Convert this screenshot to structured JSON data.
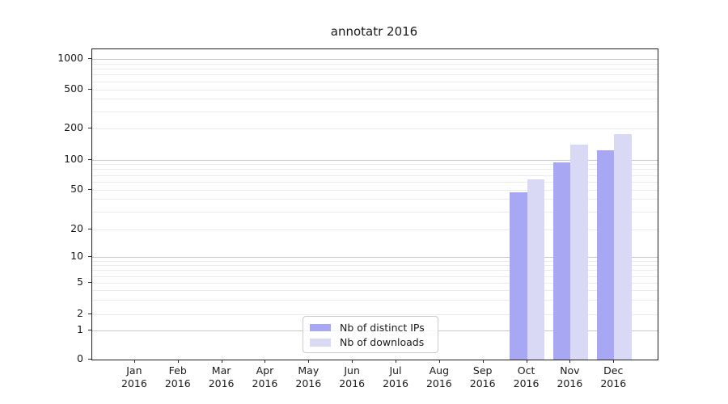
{
  "chart_data": {
    "type": "bar",
    "title": "annotatr 2016",
    "categories": [
      "Jan 2016",
      "Feb 2016",
      "Mar 2016",
      "Apr 2016",
      "May 2016",
      "Jun 2016",
      "Jul 2016",
      "Aug 2016",
      "Sep 2016",
      "Oct 2016",
      "Nov 2016",
      "Dec 2016"
    ],
    "series": [
      {
        "name": "Nb of distinct IPs",
        "color": "#a7a7f3",
        "values": [
          0,
          0,
          0,
          0,
          0,
          0,
          0,
          0,
          0,
          47,
          93,
          123
        ]
      },
      {
        "name": "Nb of downloads",
        "color": "#d9d9f6",
        "values": [
          0,
          0,
          0,
          0,
          0,
          0,
          0,
          0,
          0,
          63,
          140,
          175
        ]
      }
    ],
    "xlabel": "",
    "ylabel": "",
    "yticks": [
      0,
      1,
      2,
      5,
      10,
      20,
      50,
      100,
      200,
      500,
      1000
    ],
    "yscale": "symlog",
    "ylim": [
      0,
      1250
    ],
    "grid": "horizontal, major and minor",
    "legend_position": "lower center inside plot"
  },
  "colors": {
    "major_grid": "#c9c9c9",
    "minor_grid": "#ebebeb",
    "spine": "#1f1f1f",
    "text": "#1a1a1a"
  }
}
